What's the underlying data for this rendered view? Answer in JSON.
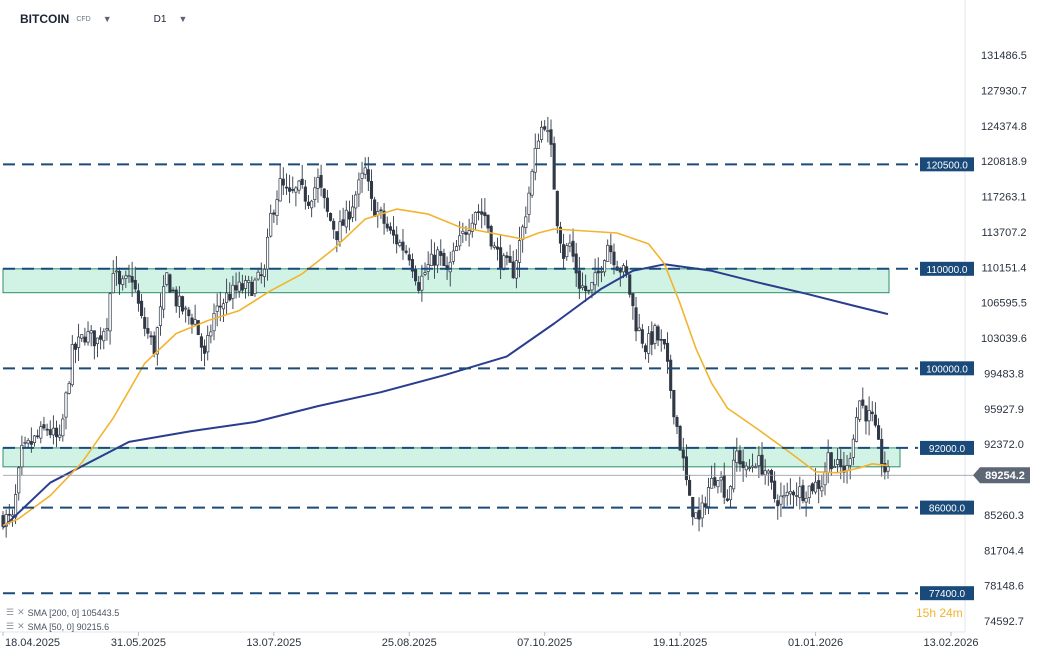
{
  "header": {
    "symbol": "BITCOIN",
    "symbol_tag": "CFD",
    "timeframe": "D1"
  },
  "indicators": [
    {
      "label": "SMA [200, 0] 105443.5",
      "color": "#2b3d8f"
    },
    {
      "label": "SMA [50, 0] 90215.6",
      "color": "#f2b42f"
    }
  ],
  "countdown": "15h 24m",
  "colors": {
    "up": "#ffffff",
    "down": "#303846",
    "wick": "#303846",
    "level_line": "#1a4a7a",
    "level_tag": "#1a4a7a",
    "zone_fill": "#c9f1e0",
    "zone_border": "#2e8f6b",
    "sma200": "#2b3d8f",
    "sma50": "#f2b42f",
    "price_tag": "#5d6775"
  },
  "chart_data": {
    "type": "candlestick",
    "y_axis": {
      "ticks": [
        "131486.5",
        "127930.7",
        "124374.8",
        "120818.9",
        "117263.1",
        "113707.2",
        "110151.4",
        "106595.5",
        "103039.6",
        "99483.8",
        "95927.9",
        "92372.0",
        "88816.2",
        "85260.3",
        "81704.4",
        "78148.6",
        "74592.7"
      ],
      "range": [
        73500,
        134000
      ]
    },
    "x_axis": {
      "ticks": [
        "18.04.2025",
        "31.05.2025",
        "13.07.2025",
        "25.08.2025",
        "07.10.2025",
        "19.11.2025",
        "01.01.2026",
        "13.02.2026"
      ],
      "tick_days": [
        0,
        43,
        86,
        129,
        172,
        215,
        258,
        301
      ],
      "last_day": 281
    },
    "levels": [
      {
        "label": "120500.0",
        "value": 120500
      },
      {
        "label": "110000.0",
        "value": 110000
      },
      {
        "label": "100000.0",
        "value": 100000
      },
      {
        "label": "92000.0",
        "value": 92000
      },
      {
        "label": "86000.0",
        "value": 86000
      },
      {
        "label": "77400.0",
        "value": 77400
      }
    ],
    "zones": [
      {
        "from": 107600,
        "to": 110000
      },
      {
        "from": 90100,
        "to": 92000
      }
    ],
    "current_price": {
      "label": "89254.2",
      "value": 89254.2
    },
    "close_path": [
      [
        0,
        85000
      ],
      [
        3,
        84700
      ],
      [
        6,
        91500
      ],
      [
        10,
        92800
      ],
      [
        14,
        94000
      ],
      [
        18,
        92500
      ],
      [
        22,
        101500
      ],
      [
        26,
        103400
      ],
      [
        30,
        102800
      ],
      [
        33,
        104800
      ],
      [
        35,
        110200
      ],
      [
        37,
        108000
      ],
      [
        41,
        109200
      ],
      [
        44,
        104800
      ],
      [
        48,
        102000
      ],
      [
        52,
        109200
      ],
      [
        55,
        106800
      ],
      [
        58,
        105500
      ],
      [
        61,
        104800
      ],
      [
        64,
        101000
      ],
      [
        67,
        105400
      ],
      [
        71,
        107200
      ],
      [
        75,
        108000
      ],
      [
        79,
        108200
      ],
      [
        83,
        109500
      ],
      [
        85,
        115200
      ],
      [
        88,
        118500
      ],
      [
        91,
        117200
      ],
      [
        94,
        118000
      ],
      [
        97,
        117000
      ],
      [
        100,
        118800
      ],
      [
        103,
        115500
      ],
      [
        106,
        113600
      ],
      [
        109,
        115000
      ],
      [
        112,
        117500
      ],
      [
        115,
        119800
      ],
      [
        117,
        116500
      ],
      [
        120,
        115200
      ],
      [
        123,
        113500
      ],
      [
        126,
        112500
      ],
      [
        129,
        111500
      ],
      [
        132,
        108500
      ],
      [
        135,
        110200
      ],
      [
        138,
        111500
      ],
      [
        141,
        109500
      ],
      [
        144,
        112000
      ],
      [
        147,
        114000
      ],
      [
        150,
        116000
      ],
      [
        153,
        115400
      ],
      [
        156,
        112000
      ],
      [
        159,
        110500
      ],
      [
        162,
        109800
      ],
      [
        165,
        114000
      ],
      [
        168,
        119500
      ],
      [
        170,
        123500
      ],
      [
        172,
        124800
      ],
      [
        174,
        121800
      ],
      [
        176,
        115000
      ],
      [
        178,
        111500
      ],
      [
        180,
        112500
      ],
      [
        183,
        108500
      ],
      [
        186,
        107500
      ],
      [
        189,
        109500
      ],
      [
        192,
        112600
      ],
      [
        195,
        110500
      ],
      [
        198,
        109200
      ],
      [
        201,
        104500
      ],
      [
        204,
        102200
      ],
      [
        207,
        103500
      ],
      [
        210,
        101800
      ],
      [
        213,
        96000
      ],
      [
        216,
        90500
      ],
      [
        218,
        86500
      ],
      [
        221,
        84500
      ],
      [
        224,
        88000
      ],
      [
        227,
        89600
      ],
      [
        230,
        87000
      ],
      [
        233,
        91500
      ],
      [
        236,
        89500
      ],
      [
        239,
        90800
      ],
      [
        242,
        89800
      ],
      [
        245,
        87000
      ],
      [
        248,
        86800
      ],
      [
        251,
        87800
      ],
      [
        254,
        87600
      ],
      [
        257,
        88200
      ],
      [
        260,
        88500
      ],
      [
        262,
        91200
      ],
      [
        265,
        90000
      ],
      [
        268,
        89800
      ],
      [
        270,
        93500
      ],
      [
        272,
        96800
      ],
      [
        274,
        95500
      ],
      [
        276,
        94800
      ],
      [
        278,
        92000
      ],
      [
        280,
        89800
      ],
      [
        281,
        89254
      ]
    ],
    "sma200": [
      [
        0,
        84000
      ],
      [
        15,
        88500
      ],
      [
        40,
        92600
      ],
      [
        60,
        93700
      ],
      [
        80,
        94600
      ],
      [
        100,
        96200
      ],
      [
        120,
        97600
      ],
      [
        140,
        99300
      ],
      [
        160,
        101200
      ],
      [
        175,
        104500
      ],
      [
        190,
        108000
      ],
      [
        200,
        109800
      ],
      [
        210,
        110450
      ],
      [
        225,
        109800
      ],
      [
        240,
        108600
      ],
      [
        255,
        107500
      ],
      [
        270,
        106300
      ],
      [
        281,
        105443.5
      ]
    ],
    "sma50": [
      [
        0,
        84200
      ],
      [
        5,
        84900
      ],
      [
        15,
        87200
      ],
      [
        25,
        90500
      ],
      [
        35,
        95000
      ],
      [
        45,
        100500
      ],
      [
        55,
        103500
      ],
      [
        65,
        104800
      ],
      [
        75,
        105800
      ],
      [
        85,
        107800
      ],
      [
        95,
        109500
      ],
      [
        105,
        112000
      ],
      [
        115,
        115000
      ],
      [
        125,
        116000
      ],
      [
        135,
        115500
      ],
      [
        145,
        114200
      ],
      [
        155,
        113600
      ],
      [
        165,
        113000
      ],
      [
        170,
        113600
      ],
      [
        175,
        114000
      ],
      [
        185,
        113800
      ],
      [
        195,
        113600
      ],
      [
        205,
        112500
      ],
      [
        210,
        110500
      ],
      [
        215,
        106500
      ],
      [
        220,
        102000
      ],
      [
        225,
        98500
      ],
      [
        230,
        96000
      ],
      [
        240,
        93800
      ],
      [
        250,
        91500
      ],
      [
        258,
        89600
      ],
      [
        265,
        89500
      ],
      [
        272,
        90000
      ],
      [
        276,
        90400
      ],
      [
        281,
        90215.6
      ]
    ]
  }
}
